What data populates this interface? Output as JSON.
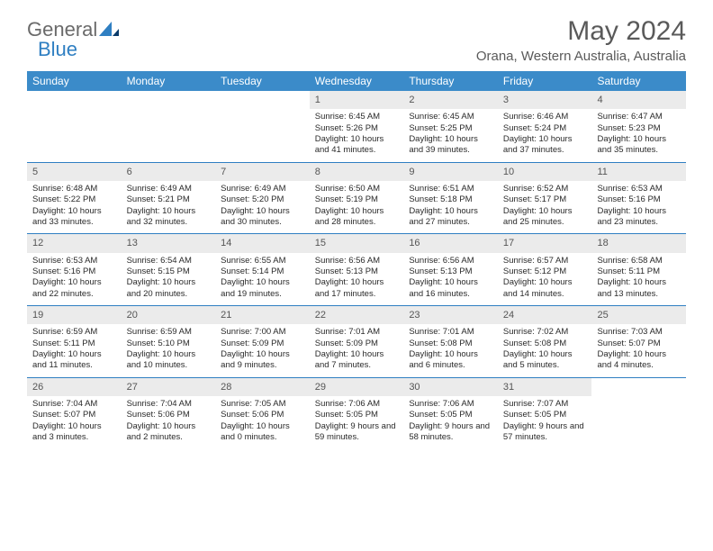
{
  "logo": {
    "part1": "General",
    "part2": "Blue"
  },
  "title": "May 2024",
  "subtitle": "Orana, Western Australia, Australia",
  "colors": {
    "header_bg": "#3b8bc9",
    "header_text": "#ffffff",
    "daynum_bg": "#ebebeb",
    "border": "#2f7fc2",
    "text": "#333333",
    "title_text": "#5a5a5a"
  },
  "dayNames": [
    "Sunday",
    "Monday",
    "Tuesday",
    "Wednesday",
    "Thursday",
    "Friday",
    "Saturday"
  ],
  "weeks": [
    [
      {
        "empty": true
      },
      {
        "empty": true
      },
      {
        "empty": true
      },
      {
        "num": "1",
        "sunrise": "6:45 AM",
        "sunset": "5:26 PM",
        "daylight": "10 hours and 41 minutes."
      },
      {
        "num": "2",
        "sunrise": "6:45 AM",
        "sunset": "5:25 PM",
        "daylight": "10 hours and 39 minutes."
      },
      {
        "num": "3",
        "sunrise": "6:46 AM",
        "sunset": "5:24 PM",
        "daylight": "10 hours and 37 minutes."
      },
      {
        "num": "4",
        "sunrise": "6:47 AM",
        "sunset": "5:23 PM",
        "daylight": "10 hours and 35 minutes."
      }
    ],
    [
      {
        "num": "5",
        "sunrise": "6:48 AM",
        "sunset": "5:22 PM",
        "daylight": "10 hours and 33 minutes."
      },
      {
        "num": "6",
        "sunrise": "6:49 AM",
        "sunset": "5:21 PM",
        "daylight": "10 hours and 32 minutes."
      },
      {
        "num": "7",
        "sunrise": "6:49 AM",
        "sunset": "5:20 PM",
        "daylight": "10 hours and 30 minutes."
      },
      {
        "num": "8",
        "sunrise": "6:50 AM",
        "sunset": "5:19 PM",
        "daylight": "10 hours and 28 minutes."
      },
      {
        "num": "9",
        "sunrise": "6:51 AM",
        "sunset": "5:18 PM",
        "daylight": "10 hours and 27 minutes."
      },
      {
        "num": "10",
        "sunrise": "6:52 AM",
        "sunset": "5:17 PM",
        "daylight": "10 hours and 25 minutes."
      },
      {
        "num": "11",
        "sunrise": "6:53 AM",
        "sunset": "5:16 PM",
        "daylight": "10 hours and 23 minutes."
      }
    ],
    [
      {
        "num": "12",
        "sunrise": "6:53 AM",
        "sunset": "5:16 PM",
        "daylight": "10 hours and 22 minutes."
      },
      {
        "num": "13",
        "sunrise": "6:54 AM",
        "sunset": "5:15 PM",
        "daylight": "10 hours and 20 minutes."
      },
      {
        "num": "14",
        "sunrise": "6:55 AM",
        "sunset": "5:14 PM",
        "daylight": "10 hours and 19 minutes."
      },
      {
        "num": "15",
        "sunrise": "6:56 AM",
        "sunset": "5:13 PM",
        "daylight": "10 hours and 17 minutes."
      },
      {
        "num": "16",
        "sunrise": "6:56 AM",
        "sunset": "5:13 PM",
        "daylight": "10 hours and 16 minutes."
      },
      {
        "num": "17",
        "sunrise": "6:57 AM",
        "sunset": "5:12 PM",
        "daylight": "10 hours and 14 minutes."
      },
      {
        "num": "18",
        "sunrise": "6:58 AM",
        "sunset": "5:11 PM",
        "daylight": "10 hours and 13 minutes."
      }
    ],
    [
      {
        "num": "19",
        "sunrise": "6:59 AM",
        "sunset": "5:11 PM",
        "daylight": "10 hours and 11 minutes."
      },
      {
        "num": "20",
        "sunrise": "6:59 AM",
        "sunset": "5:10 PM",
        "daylight": "10 hours and 10 minutes."
      },
      {
        "num": "21",
        "sunrise": "7:00 AM",
        "sunset": "5:09 PM",
        "daylight": "10 hours and 9 minutes."
      },
      {
        "num": "22",
        "sunrise": "7:01 AM",
        "sunset": "5:09 PM",
        "daylight": "10 hours and 7 minutes."
      },
      {
        "num": "23",
        "sunrise": "7:01 AM",
        "sunset": "5:08 PM",
        "daylight": "10 hours and 6 minutes."
      },
      {
        "num": "24",
        "sunrise": "7:02 AM",
        "sunset": "5:08 PM",
        "daylight": "10 hours and 5 minutes."
      },
      {
        "num": "25",
        "sunrise": "7:03 AM",
        "sunset": "5:07 PM",
        "daylight": "10 hours and 4 minutes."
      }
    ],
    [
      {
        "num": "26",
        "sunrise": "7:04 AM",
        "sunset": "5:07 PM",
        "daylight": "10 hours and 3 minutes."
      },
      {
        "num": "27",
        "sunrise": "7:04 AM",
        "sunset": "5:06 PM",
        "daylight": "10 hours and 2 minutes."
      },
      {
        "num": "28",
        "sunrise": "7:05 AM",
        "sunset": "5:06 PM",
        "daylight": "10 hours and 0 minutes."
      },
      {
        "num": "29",
        "sunrise": "7:06 AM",
        "sunset": "5:05 PM",
        "daylight": "9 hours and 59 minutes."
      },
      {
        "num": "30",
        "sunrise": "7:06 AM",
        "sunset": "5:05 PM",
        "daylight": "9 hours and 58 minutes."
      },
      {
        "num": "31",
        "sunrise": "7:07 AM",
        "sunset": "5:05 PM",
        "daylight": "9 hours and 57 minutes."
      },
      {
        "empty": true
      }
    ]
  ],
  "labels": {
    "sunrise": "Sunrise:",
    "sunset": "Sunset:",
    "daylight": "Daylight:"
  }
}
